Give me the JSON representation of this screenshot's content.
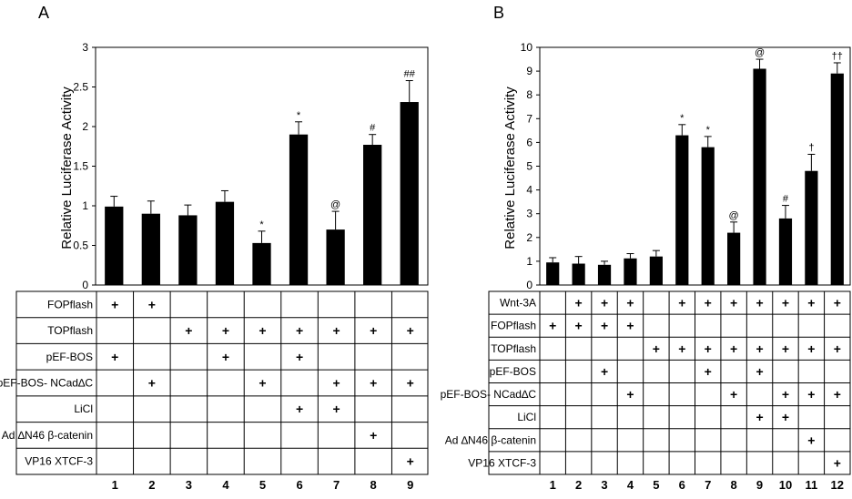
{
  "panels": [
    {
      "letter": "A",
      "ylabel": "Relative Luciferase Activity",
      "chart_data": {
        "type": "bar",
        "categories": [
          "1",
          "2",
          "3",
          "4",
          "5",
          "6",
          "7",
          "8",
          "9"
        ],
        "values": [
          0.99,
          0.9,
          0.88,
          1.05,
          0.53,
          1.9,
          0.7,
          1.77,
          2.31
        ],
        "errors": [
          0.13,
          0.16,
          0.13,
          0.14,
          0.15,
          0.16,
          0.23,
          0.13,
          0.27
        ],
        "annotations": [
          "",
          "",
          "",
          "",
          "*",
          "*",
          "@",
          "#",
          "##"
        ],
        "ylabel": "Relative Luciferase Activity",
        "ylim": [
          0,
          3
        ],
        "yticks": [
          "0",
          "0.5",
          "1",
          "1.5",
          "2",
          "2.5",
          "3"
        ],
        "ytick_values": [
          0,
          0.5,
          1,
          1.5,
          2,
          2.5,
          3
        ],
        "bar_color": "#000000"
      },
      "table": {
        "rows": [
          {
            "label": "FOPflash",
            "plus": [
              1,
              2
            ]
          },
          {
            "label": "TOPflash",
            "plus": [
              3,
              4,
              5,
              6,
              7,
              8,
              9
            ]
          },
          {
            "label": "pEF-BOS",
            "plus": [
              1,
              4,
              6
            ]
          },
          {
            "label": "pEF-BOS- NCad∆C",
            "plus": [
              2,
              5,
              7,
              8,
              9
            ]
          },
          {
            "label": "LiCl",
            "plus": [
              6,
              7
            ]
          },
          {
            "label": "Ad ∆N46 β-catenin",
            "plus": [
              8
            ]
          },
          {
            "label": "VP16 XTCF-3",
            "plus": [
              9
            ]
          }
        ],
        "columns": [
          "1",
          "2",
          "3",
          "4",
          "5",
          "6",
          "7",
          "8",
          "9"
        ],
        "mark": "+"
      }
    },
    {
      "letter": "B",
      "ylabel": "Relative Luciferase Activity",
      "chart_data": {
        "type": "bar",
        "categories": [
          "1",
          "2",
          "3",
          "4",
          "5",
          "6",
          "7",
          "8",
          "9",
          "10",
          "11",
          "12"
        ],
        "values": [
          0.95,
          0.9,
          0.85,
          1.12,
          1.2,
          6.3,
          5.8,
          2.2,
          9.1,
          2.8,
          4.8,
          8.9
        ],
        "errors": [
          0.2,
          0.3,
          0.15,
          0.2,
          0.25,
          0.45,
          0.45,
          0.45,
          0.4,
          0.55,
          0.7,
          0.45
        ],
        "annotations": [
          "",
          "",
          "",
          "",
          "",
          "*",
          "*",
          "@",
          "@",
          "#",
          "†",
          "††"
        ],
        "ylabel": "Relative Luciferase Activity",
        "ylim": [
          0,
          10
        ],
        "yticks": [
          "0",
          "1",
          "2",
          "3",
          "4",
          "5",
          "6",
          "7",
          "8",
          "9",
          "10"
        ],
        "ytick_values": [
          0,
          1,
          2,
          3,
          4,
          5,
          6,
          7,
          8,
          9,
          10
        ],
        "bar_color": "#000000"
      },
      "table": {
        "rows": [
          {
            "label": "Wnt-3A",
            "plus": [
              2,
              3,
              4,
              6,
              7,
              8,
              9,
              10,
              11,
              12
            ]
          },
          {
            "label": "FOPflash",
            "plus": [
              1,
              2,
              3,
              4
            ]
          },
          {
            "label": "TOPflash",
            "plus": [
              5,
              6,
              7,
              8,
              9,
              10,
              11,
              12
            ]
          },
          {
            "label": "pEF-BOS",
            "plus": [
              3,
              7,
              9
            ]
          },
          {
            "label": "pEF-BOS- NCad∆C",
            "plus": [
              4,
              8,
              10,
              11,
              12
            ]
          },
          {
            "label": "LiCl",
            "plus": [
              9,
              10
            ]
          },
          {
            "label": "Ad ∆N46 β-catenin",
            "plus": [
              11
            ]
          },
          {
            "label": "VP16 XTCF-3",
            "plus": [
              12
            ]
          }
        ],
        "columns": [
          "1",
          "2",
          "3",
          "4",
          "5",
          "6",
          "7",
          "8",
          "9",
          "10",
          "11",
          "12"
        ],
        "mark": "+"
      }
    }
  ]
}
